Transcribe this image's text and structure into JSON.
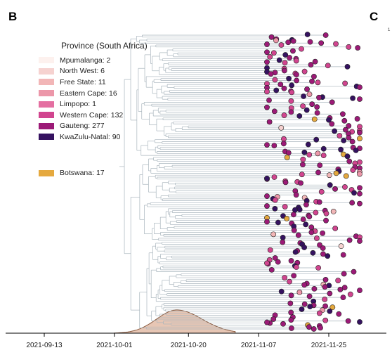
{
  "panels": {
    "left": "B",
    "right": "C",
    "right_tick": "1"
  },
  "legend": {
    "title": "Province (South Africa)",
    "items": [
      {
        "label": "Mpumalanga: 2",
        "color": "#fdf1ee"
      },
      {
        "label": "North West: 6",
        "color": "#f6d2d0"
      },
      {
        "label": "Free State: 11",
        "color": "#f2b6b7"
      },
      {
        "label": "Eastern Cape: 16",
        "color": "#ec97a9"
      },
      {
        "label": "Limpopo: 1",
        "color": "#e46fa1"
      },
      {
        "label": "Western Cape: 132",
        "color": "#d1458f"
      },
      {
        "label": "Gauteng: 277",
        "color": "#9c1a77"
      },
      {
        "label": "KwaZulu-Natal: 90",
        "color": "#351260"
      }
    ],
    "extra": {
      "label": "Botswana: 17",
      "color": "#e5a93f"
    }
  },
  "chart_data": {
    "type": "scatter",
    "description_free": true,
    "x_axis": {
      "type": "date",
      "ticks": [
        "2021-09-13",
        "2021-10-01",
        "2021-10-20",
        "2021-11-07",
        "2021-11-25"
      ],
      "range": [
        "2021-09-01",
        "2021-12-12"
      ]
    },
    "tree_root_date": "2021-10-03",
    "density": {
      "series": "tMRCA density",
      "peak_date": "2021-10-17",
      "range": [
        "2021-10-01",
        "2021-11-01"
      ],
      "fill": "#e7c6b4",
      "stroke": "#8a5a3e"
    },
    "tip_counts": {
      "Mpumalanga": 2,
      "North West": 6,
      "Free State": 11,
      "Eastern Cape": 16,
      "Limpopo": 1,
      "Western Cape": 132,
      "Gauteng": 277,
      "KwaZulu-Natal": 90,
      "Botswana": 17
    },
    "branch_color": "#a9b5bd"
  }
}
